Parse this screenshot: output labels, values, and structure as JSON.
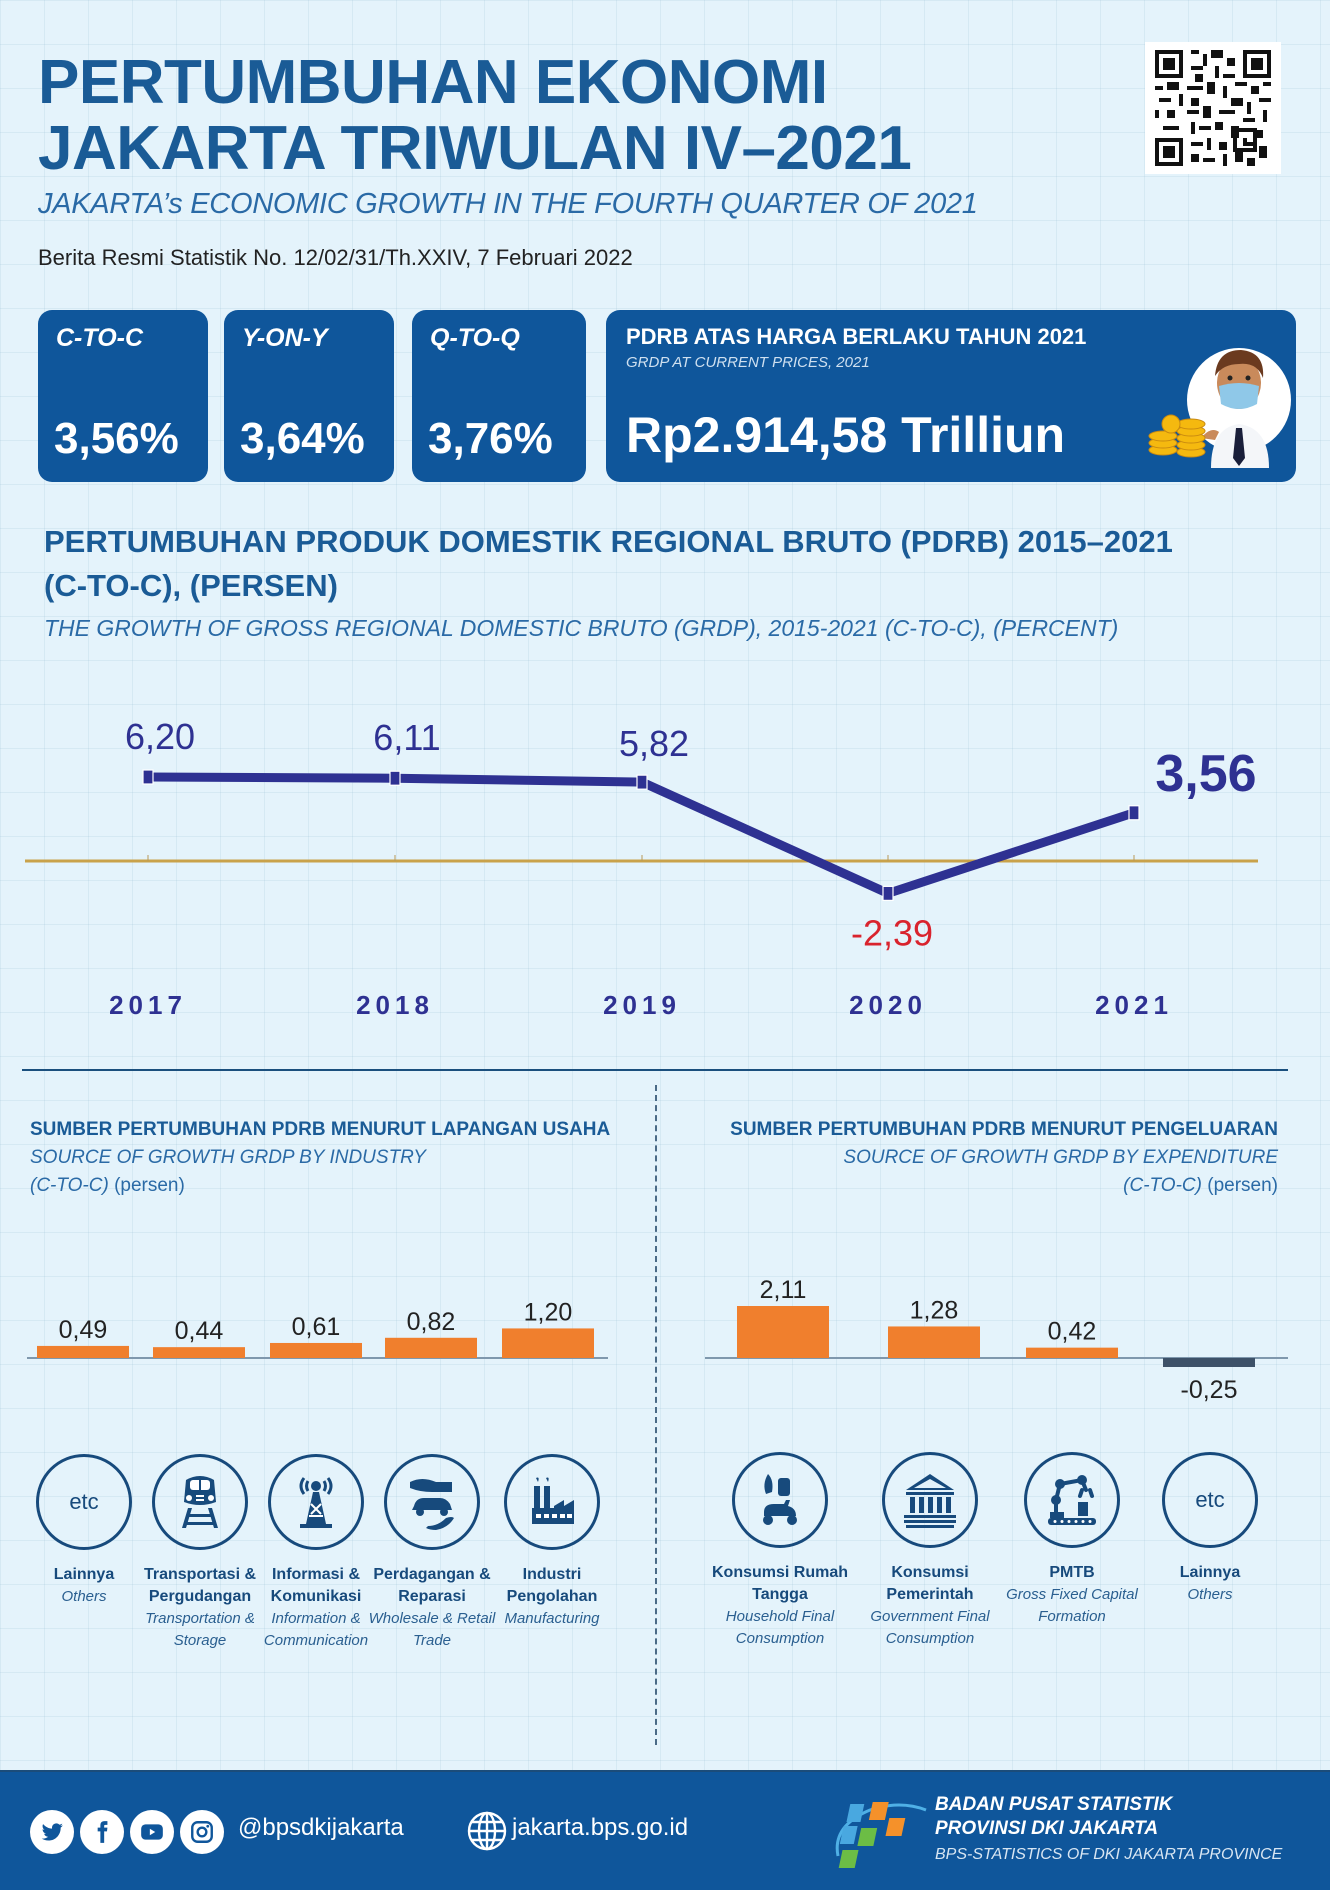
{
  "header": {
    "title_line1": "PERTUMBUHAN EKONOMI",
    "title_line2": "JAKARTA TRIWULAN IV–2021",
    "subtitle_en": "JAKARTA’s ECONOMIC GROWTH IN THE FOURTH QUARTER OF 2021",
    "brs": "Berita Resmi Statistik No. 12/02/31/Th.XXIV, 7 Februari 2022",
    "qr_icon": "qr-code-icon"
  },
  "stats": [
    {
      "label": "C-TO-C",
      "value": "3,56%"
    },
    {
      "label": "Y-ON-Y",
      "value": "3,64%"
    },
    {
      "label": "Q-TO-Q",
      "value": "3,76%"
    }
  ],
  "pdrb": {
    "title": "PDRB ATAS HARGA BERLAKU TAHUN 2021",
    "subtitle": "GRDP AT CURRENT PRICES, 2021",
    "value": "Rp2.914,58 Trilliun",
    "illustration_icon": "businessman-with-coins-icon"
  },
  "section": {
    "title_line1": "PERTUMBUHAN PRODUK DOMESTIK REGIONAL BRUTO (PDRB) 2015–2021",
    "title_line2": "(C-TO-C), (PERSEN)",
    "subtitle": "THE GROWTH OF GROSS REGIONAL DOMESTIC BRUTO (GRDP), 2015-2021 (C-TO-C), (PERCENT)"
  },
  "industry": {
    "title": "SUMBER PERTUMBUHAN PDRB MENURUT LAPANGAN USAHA",
    "subtitle": "SOURCE OF GROWTH GRDP BY INDUSTRY",
    "unit_italic": "(C-TO-C)",
    "unit": " (persen)",
    "categories": [
      {
        "name": "Lainnya",
        "en": "Others",
        "icon": "etc-icon",
        "icon_text": "etc"
      },
      {
        "name": "Transportasi & Pergudangan",
        "en": "Transportation & Storage",
        "icon": "train-icon"
      },
      {
        "name": "Informasi & Komunikasi",
        "en": "Information & Communication",
        "icon": "radio-tower-icon"
      },
      {
        "name": "Perdagangan & Reparasi",
        "en": "Wholesale & Retail Trade",
        "icon": "car-trade-icon"
      },
      {
        "name": "Industri Pengolahan",
        "en": "Manufacturing",
        "icon": "factory-icon"
      }
    ]
  },
  "expenditure": {
    "title": "SUMBER PERTUMBUHAN PDRB MENURUT PENGELUARAN",
    "subtitle": "SOURCE OF GROWTH GRDP BY EXPENDITURE",
    "unit_italic": "(C-TO-C)",
    "unit": " (persen)",
    "categories": [
      {
        "name": "Konsumsi Rumah Tangga",
        "en": "Household Final Consumption",
        "icon": "household-scooter-icon"
      },
      {
        "name": "Konsumsi Pemerintah",
        "en": "Government Final Consumption",
        "icon": "government-building-icon"
      },
      {
        "name": "PMTB",
        "en": "Gross Fixed Capital Formation",
        "icon": "robot-arm-icon"
      },
      {
        "name": "Lainnya",
        "en": "Others",
        "icon": "etc-icon",
        "icon_text": "etc"
      }
    ]
  },
  "footer": {
    "social_icons": [
      "twitter-icon",
      "facebook-icon",
      "youtube-icon",
      "instagram-icon"
    ],
    "handle": "@bpsdkijakarta",
    "website": "jakarta.bps.go.id",
    "org_line1": "BADAN PUSAT STATISTIK",
    "org_line2": "PROVINSI DKI JAKARTA",
    "org_line3": "BPS-STATISTICS OF DKI JAKARTA PROVINCE"
  },
  "colors": {
    "primary_blue": "#0f569b",
    "title_blue": "#1a5b96",
    "line_navy": "#2e3192",
    "bar_orange": "#f07f2d",
    "negative_bar": "#3d5168",
    "negative_red": "#d9232d",
    "zero_line": "#c9a24a",
    "background": "#e4f3fb"
  },
  "chart_data": [
    {
      "type": "line",
      "title": "PERTUMBUHAN PRODUK DOMESTIK REGIONAL BRUTO (PDRB) 2015–2021 (C-TO-C), (PERSEN)",
      "subtitle": "THE GROWTH OF GROSS REGIONAL DOMESTIC BRUTO (GRDP), 2015-2021 (C-TO-C), (PERCENT)",
      "categories": [
        "2017",
        "2018",
        "2019",
        "2020",
        "2021"
      ],
      "values": [
        6.2,
        6.11,
        5.82,
        -2.39,
        3.56
      ],
      "labels": [
        "6,20",
        "6,11",
        "5,82",
        "-2,39",
        "3,56"
      ],
      "xlabel": "",
      "ylabel": "Persen",
      "zero_line": true,
      "grid": false,
      "legend": "none"
    },
    {
      "type": "bar",
      "title": "SUMBER PERTUMBUHAN PDRB MENURUT LAPANGAN USAHA",
      "subtitle": "SOURCE OF GROWTH GRDP BY INDUSTRY (C-TO-C) (persen)",
      "categories": [
        "Lainnya",
        "Transportasi & Pergudangan",
        "Informasi & Komunikasi",
        "Perdagangan & Reparasi",
        "Industri Pengolahan"
      ],
      "values": [
        0.49,
        0.44,
        0.61,
        0.82,
        1.2
      ],
      "labels": [
        "0,49",
        "0,44",
        "0,61",
        "0,82",
        "1,20"
      ]
    },
    {
      "type": "bar",
      "title": "SUMBER PERTUMBUHAN PDRB MENURUT PENGELUARAN",
      "subtitle": "SOURCE OF GROWTH GRDP BY EXPENDITURE (C-TO-C) (persen)",
      "categories": [
        "Konsumsi Rumah Tangga",
        "Konsumsi Pemerintah",
        "PMTB",
        "Lainnya"
      ],
      "values": [
        2.11,
        1.28,
        0.42,
        -0.25
      ],
      "labels": [
        "2,11",
        "1,28",
        "0,42",
        "-0,25"
      ]
    }
  ]
}
